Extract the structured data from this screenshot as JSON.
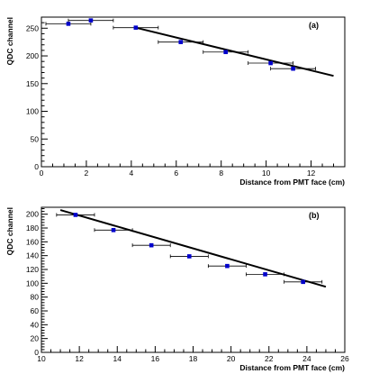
{
  "colors": {
    "axis": "#000000",
    "marker": "#0000cc",
    "fit_line": "#000000",
    "error_bar": "#000000"
  },
  "chart_data": [
    {
      "type": "scatter",
      "panel_label": "(a)",
      "xlabel": "Distance from PMT face (cm)",
      "ylabel": "QDC channel",
      "xlim": [
        0,
        13.5
      ],
      "ylim": [
        0,
        270
      ],
      "xticks": [
        0,
        2,
        4,
        6,
        8,
        10,
        12
      ],
      "yticks": [
        0,
        50,
        100,
        150,
        200,
        250
      ],
      "grid": false,
      "legend": "none",
      "points": [
        {
          "x": 1.2,
          "y": 258,
          "xerr": 1.0
        },
        {
          "x": 2.2,
          "y": 264,
          "xerr": 1.0
        },
        {
          "x": 4.2,
          "y": 251,
          "xerr": 1.0
        },
        {
          "x": 6.2,
          "y": 225,
          "xerr": 1.0
        },
        {
          "x": 8.2,
          "y": 207,
          "xerr": 1.0
        },
        {
          "x": 10.2,
          "y": 187,
          "xerr": 1.0
        },
        {
          "x": 11.2,
          "y": 177,
          "xerr": 1.0
        }
      ],
      "fit": {
        "x": [
          4.2,
          13.0
        ],
        "y": [
          251,
          164
        ]
      }
    },
    {
      "type": "scatter",
      "panel_label": "(b)",
      "xlabel": "Distance from PMT face (cm)",
      "ylabel": "QDC channel",
      "xlim": [
        10,
        26
      ],
      "ylim": [
        0,
        210
      ],
      "xticks": [
        10,
        12,
        14,
        16,
        18,
        20,
        22,
        24,
        26
      ],
      "yticks": [
        0,
        20,
        40,
        60,
        80,
        100,
        120,
        140,
        160,
        180,
        200
      ],
      "grid": false,
      "legend": "none",
      "points": [
        {
          "x": 11.8,
          "y": 199,
          "xerr": 1.0
        },
        {
          "x": 13.8,
          "y": 177,
          "xerr": 1.0
        },
        {
          "x": 15.8,
          "y": 155,
          "xerr": 1.0
        },
        {
          "x": 17.8,
          "y": 139,
          "xerr": 1.0
        },
        {
          "x": 19.8,
          "y": 125,
          "xerr": 1.0
        },
        {
          "x": 21.8,
          "y": 113,
          "xerr": 1.0
        },
        {
          "x": 23.8,
          "y": 102,
          "xerr": 1.0
        }
      ],
      "fit": {
        "x": [
          11.0,
          25.0
        ],
        "y": [
          206,
          95
        ]
      }
    }
  ]
}
